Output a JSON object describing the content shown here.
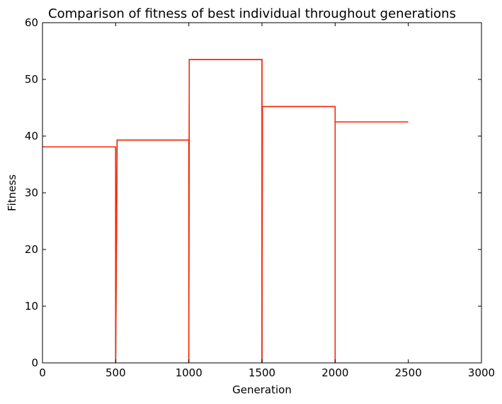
{
  "chart_data": {
    "type": "line",
    "title": "Comparison of fitness of best individual throughout generations",
    "xlabel": "Generation",
    "ylabel": "Fitness",
    "xlim": [
      0,
      3000
    ],
    "ylim": [
      0,
      60
    ],
    "xticks": [
      0,
      500,
      1000,
      1500,
      2000,
      2500,
      3000
    ],
    "yticks": [
      0,
      10,
      20,
      30,
      40,
      50,
      60
    ],
    "xtick_labels": [
      "0",
      "500",
      "1000",
      "1500",
      "2000",
      "2500",
      "3000"
    ],
    "ytick_labels": [
      "0",
      "10",
      "20",
      "30",
      "40",
      "50",
      "60"
    ],
    "grid": false,
    "legend": null,
    "series": [
      {
        "color": "#1a3fb0",
        "x": [
          0,
          500,
          500
        ],
        "y": [
          38.1,
          38.1,
          0
        ]
      },
      {
        "color": "#1e8a1e",
        "x": [
          500,
          510,
          510,
          1000,
          1000
        ],
        "y": [
          0,
          38.3,
          39.3,
          39.3,
          0
        ]
      },
      {
        "color": "#cc2222",
        "x": [
          1000,
          1003,
          1003,
          1500,
          1500
        ],
        "y": [
          0,
          51.0,
          53.5,
          53.5,
          0
        ]
      },
      {
        "color": "#1ab3b3",
        "x": [
          1500,
          1503,
          1503,
          2000,
          2000
        ],
        "y": [
          0,
          41.5,
          45.2,
          45.2,
          0
        ]
      },
      {
        "color": "#ff2200",
        "x": [
          0,
          500,
          500,
          500,
          510,
          510,
          1000,
          1000,
          1003,
          1003,
          1500,
          1500,
          1503,
          1503,
          2000,
          2000,
          2000,
          2500
        ],
        "y": [
          38.1,
          38.1,
          0,
          0,
          38.3,
          39.3,
          39.3,
          0,
          51.0,
          53.5,
          53.5,
          0,
          41.5,
          45.2,
          45.2,
          0,
          42.5,
          42.5
        ]
      }
    ]
  }
}
